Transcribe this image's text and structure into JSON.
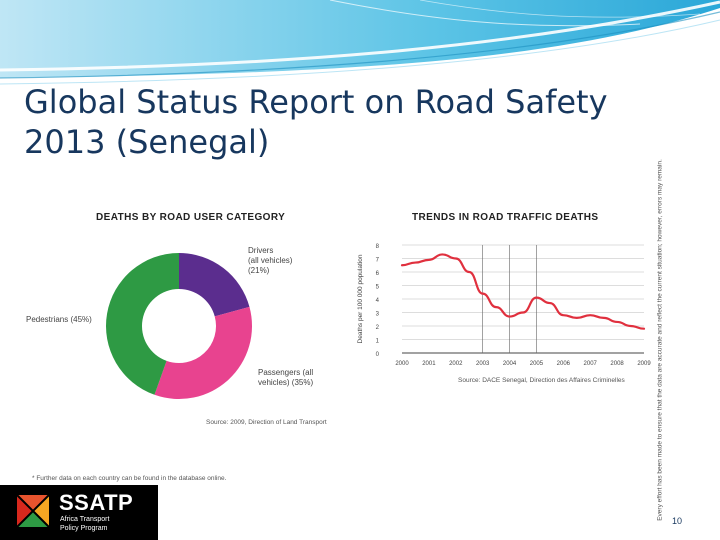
{
  "slide": {
    "title_line1": "Global Status Report on Road Safety",
    "title_line2": "2013 (Senegal)",
    "page_number": "10",
    "footnote": "* Further data on each country can be found in the database online."
  },
  "side_note": "Every effort has been made to ensure that the data are accurate and reflect the current situation; however, errors may remain.",
  "logo": {
    "name": "SSATP",
    "line1": "Africa Transport",
    "line2": "Policy Program"
  },
  "colors": {
    "drivers": "#5b2d8e",
    "passengers": "#e8438f",
    "pedestrians": "#2e9a44",
    "line": "#e0303e",
    "title": "#17375e"
  },
  "chart_data": [
    {
      "type": "pie",
      "title": "DEATHS BY ROAD USER CATEGORY",
      "donut": true,
      "slices": [
        {
          "label_line1": "Drivers",
          "label_line2": "(all vehicles)",
          "label_line3": "(21%)",
          "value": 21
        },
        {
          "label_line1": "Passengers (all",
          "label_line2": "vehicles) (35%)",
          "value": 35
        },
        {
          "label_line1": "Pedestrians (45%)",
          "value": 45
        }
      ],
      "source": "Source: 2009, Direction of Land Transport"
    },
    {
      "type": "line",
      "title": "TRENDS IN ROAD TRAFFIC DEATHS",
      "ylabel": "Deaths per 100 000 population",
      "x": [
        2000,
        2000.5,
        2001,
        2001.5,
        2002,
        2002.5,
        2003,
        2003.5,
        2004,
        2004.5,
        2005,
        2005.5,
        2006,
        2006.5,
        2007,
        2007.5,
        2008,
        2008.5,
        2009
      ],
      "values": [
        6.5,
        6.7,
        6.9,
        7.3,
        7.0,
        6.0,
        4.4,
        3.4,
        2.7,
        3.0,
        4.1,
        3.7,
        2.8,
        2.6,
        2.8,
        2.6,
        2.3,
        2.0,
        1.8
      ],
      "xticks": [
        "2000",
        "2001",
        "2002",
        "2003",
        "2004",
        "2005",
        "2006",
        "2007",
        "2008",
        "2009"
      ],
      "yticks": [
        "0",
        "1",
        "2",
        "3",
        "4",
        "5",
        "6",
        "7",
        "8"
      ],
      "ylim": [
        0,
        8
      ],
      "xlim": [
        2000,
        2009
      ],
      "grid": true,
      "source": "Source: DACE Senegal, Direction des Affaires Criminelles"
    }
  ]
}
